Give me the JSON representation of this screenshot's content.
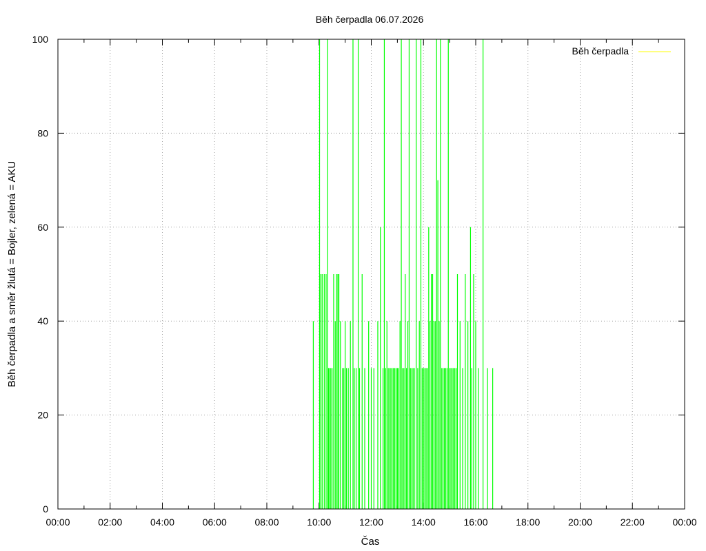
{
  "chart_data": {
    "type": "line",
    "title": "Běh čerpadla 06.07.2026",
    "xlabel": "Čas",
    "ylabel": "Běh čerpadla a směr žlutá = Bojler, zelená = AKU",
    "xlim": [
      0,
      24
    ],
    "ylim": [
      0,
      100
    ],
    "x_tick_labels": [
      "00:00",
      "02:00",
      "04:00",
      "06:00",
      "08:00",
      "10:00",
      "12:00",
      "14:00",
      "16:00",
      "18:00",
      "20:00",
      "22:00",
      "00:00"
    ],
    "y_tick_labels": [
      "0",
      "20",
      "40",
      "60",
      "80",
      "100"
    ],
    "grid": true,
    "legend": {
      "position": "top-right",
      "entries": [
        {
          "label": "Běh čerpadla",
          "color": "#ffff00"
        }
      ]
    },
    "series": [
      {
        "color": "#00ff00",
        "x_unit": "hours",
        "spikes": [
          [
            9.78,
            40
          ],
          [
            10.02,
            100
          ],
          [
            10.07,
            50
          ],
          [
            10.12,
            50
          ],
          [
            10.2,
            50
          ],
          [
            10.27,
            50
          ],
          [
            10.33,
            100
          ],
          [
            10.36,
            30
          ],
          [
            10.4,
            30
          ],
          [
            10.45,
            30
          ],
          [
            10.5,
            30
          ],
          [
            10.56,
            50
          ],
          [
            10.62,
            40
          ],
          [
            10.67,
            50
          ],
          [
            10.72,
            50
          ],
          [
            10.76,
            50
          ],
          [
            10.82,
            40
          ],
          [
            10.9,
            30
          ],
          [
            10.95,
            30
          ],
          [
            11.0,
            40
          ],
          [
            11.05,
            30
          ],
          [
            11.12,
            30
          ],
          [
            11.2,
            40
          ],
          [
            11.3,
            100
          ],
          [
            11.35,
            30
          ],
          [
            11.42,
            30
          ],
          [
            11.5,
            100
          ],
          [
            11.55,
            30
          ],
          [
            11.65,
            50
          ],
          [
            11.75,
            30
          ],
          [
            11.9,
            40
          ],
          [
            12.0,
            30
          ],
          [
            12.1,
            30
          ],
          [
            12.25,
            40
          ],
          [
            12.35,
            60
          ],
          [
            12.45,
            30
          ],
          [
            12.5,
            100
          ],
          [
            12.55,
            30
          ],
          [
            12.6,
            40
          ],
          [
            12.65,
            30
          ],
          [
            12.7,
            30
          ],
          [
            12.75,
            30
          ],
          [
            12.8,
            30
          ],
          [
            12.85,
            30
          ],
          [
            12.9,
            30
          ],
          [
            12.95,
            30
          ],
          [
            13.0,
            30
          ],
          [
            13.05,
            30
          ],
          [
            13.1,
            40
          ],
          [
            13.15,
            100
          ],
          [
            13.2,
            30
          ],
          [
            13.25,
            30
          ],
          [
            13.3,
            50
          ],
          [
            13.35,
            30
          ],
          [
            13.4,
            40
          ],
          [
            13.45,
            100
          ],
          [
            13.5,
            30
          ],
          [
            13.55,
            30
          ],
          [
            13.6,
            30
          ],
          [
            13.65,
            30
          ],
          [
            13.72,
            100
          ],
          [
            13.78,
            30
          ],
          [
            13.84,
            40
          ],
          [
            13.9,
            100
          ],
          [
            13.95,
            30
          ],
          [
            14.0,
            30
          ],
          [
            14.05,
            30
          ],
          [
            14.1,
            30
          ],
          [
            14.15,
            30
          ],
          [
            14.2,
            60
          ],
          [
            14.25,
            40
          ],
          [
            14.3,
            50
          ],
          [
            14.35,
            50
          ],
          [
            14.4,
            40
          ],
          [
            14.45,
            40
          ],
          [
            14.5,
            100
          ],
          [
            14.55,
            70
          ],
          [
            14.6,
            40
          ],
          [
            14.65,
            100
          ],
          [
            14.7,
            30
          ],
          [
            14.75,
            30
          ],
          [
            14.8,
            30
          ],
          [
            14.85,
            30
          ],
          [
            14.9,
            30
          ],
          [
            14.95,
            100
          ],
          [
            15.0,
            30
          ],
          [
            15.05,
            30
          ],
          [
            15.1,
            30
          ],
          [
            15.15,
            30
          ],
          [
            15.2,
            30
          ],
          [
            15.25,
            30
          ],
          [
            15.3,
            50
          ],
          [
            15.4,
            40
          ],
          [
            15.5,
            30
          ],
          [
            15.6,
            50
          ],
          [
            15.7,
            40
          ],
          [
            15.8,
            60
          ],
          [
            15.85,
            30
          ],
          [
            15.92,
            50
          ],
          [
            16.0,
            40
          ],
          [
            16.1,
            30
          ],
          [
            16.28,
            100
          ],
          [
            16.45,
            30
          ],
          [
            16.65,
            30
          ]
        ]
      }
    ]
  }
}
